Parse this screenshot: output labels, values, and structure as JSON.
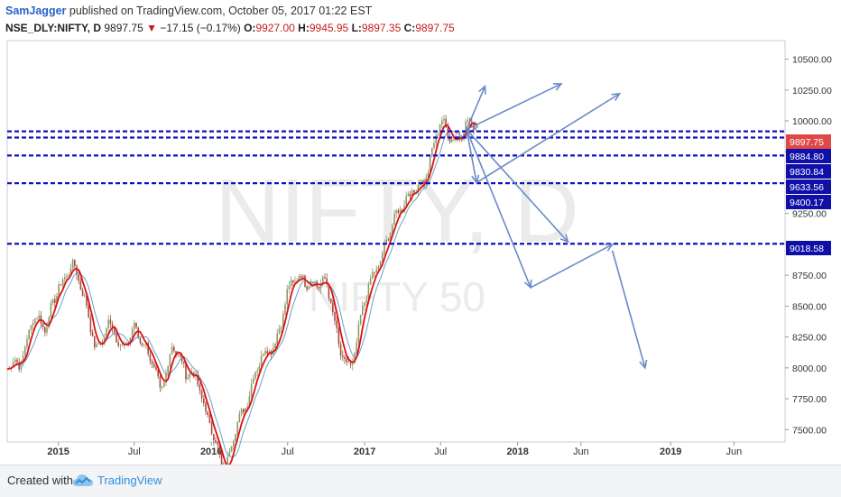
{
  "header": {
    "user": "SamJagger",
    "published_text": "published on TradingView.com, October 05, 2017 01:22 EST",
    "symbol": "NSE_DLY:NIFTY, D",
    "last": "9897.75",
    "change_arrow": "▼",
    "change": "−17.15 (−0.17%)",
    "o_label": "O:",
    "o_value": "9927.00",
    "h_label": "H:",
    "h_value": "9945.95",
    "l_label": "L:",
    "l_value": "9897.35",
    "c_label": "C:",
    "c_value": "9897.75"
  },
  "watermark": {
    "big": "NIFTY, D",
    "small": "NIFTY 50"
  },
  "footer": {
    "created_with": "Created with",
    "brand": "TradingView",
    "logo_icon": "tradingview-cloud-icon"
  },
  "colors": {
    "candle_up": "#8a9a6a",
    "candle_down": "#a05040",
    "ma_fast": "#e01010",
    "ma_slow": "#6aa0c8",
    "level_line": "#1010c0",
    "arrow": "#6a8ac8",
    "last_price_tag": "#e04848",
    "level_tag": "#1010a8"
  },
  "chart_data": {
    "type": "candlestick",
    "x_axis": {
      "start": "2014-09",
      "end": "2019-10",
      "ticks": [
        {
          "label": "2015",
          "date": "2015-01",
          "bold": true
        },
        {
          "label": "Jul",
          "date": "2015-07"
        },
        {
          "label": "2016",
          "date": "2016-01",
          "bold": true
        },
        {
          "label": "Jul",
          "date": "2016-07"
        },
        {
          "label": "2017",
          "date": "2017-01",
          "bold": true
        },
        {
          "label": "Jul",
          "date": "2017-07"
        },
        {
          "label": "2018",
          "date": "2018-01",
          "bold": true
        },
        {
          "label": "Jun",
          "date": "2018-06"
        },
        {
          "label": "2019",
          "date": "2019-01",
          "bold": true
        },
        {
          "label": "Jun",
          "date": "2019-06"
        }
      ]
    },
    "y_axis": {
      "range": [
        7400,
        10650
      ],
      "ticks": [
        "10500.00",
        "10250.00",
        "10000.00",
        "9750.00",
        "9500.00",
        "9250.00",
        "9000.00",
        "8750.00",
        "8500.00",
        "8250.00",
        "8000.00",
        "7750.00",
        "7500.00"
      ]
    },
    "price_path": [
      [
        "2014-09",
        7950
      ],
      [
        "2014-10",
        8050
      ],
      [
        "2014-11",
        8450
      ],
      [
        "2014-12",
        8250
      ],
      [
        "2015-01",
        8700
      ],
      [
        "2015-02",
        8850
      ],
      [
        "2015-03",
        8550
      ],
      [
        "2015-04",
        8200
      ],
      [
        "2015-05",
        8350
      ],
      [
        "2015-06",
        8100
      ],
      [
        "2015-07",
        8400
      ],
      [
        "2015-08",
        8100
      ],
      [
        "2015-09",
        7800
      ],
      [
        "2015-10",
        8250
      ],
      [
        "2015-11",
        7900
      ],
      [
        "2015-12",
        7900
      ],
      [
        "2016-01",
        7550
      ],
      [
        "2016-02",
        7050
      ],
      [
        "2016-03",
        7600
      ],
      [
        "2016-04",
        7800
      ],
      [
        "2016-05",
        8050
      ],
      [
        "2016-06",
        8250
      ],
      [
        "2016-07",
        8600
      ],
      [
        "2016-08",
        8700
      ],
      [
        "2016-09",
        8750
      ],
      [
        "2016-10",
        8650
      ],
      [
        "2016-11",
        8150
      ],
      [
        "2016-12",
        8050
      ],
      [
        "2017-01",
        8500
      ],
      [
        "2017-02",
        8850
      ],
      [
        "2017-03",
        9150
      ],
      [
        "2017-04",
        9250
      ],
      [
        "2017-05",
        9500
      ],
      [
        "2017-06",
        9600
      ],
      [
        "2017-07",
        9950
      ],
      [
        "2017-08",
        9900
      ],
      [
        "2017-09",
        9950
      ],
      [
        "2017-10",
        9897.75
      ]
    ],
    "levels": [
      {
        "value": 9897.75,
        "label": "9897.75",
        "tag": "last"
      },
      {
        "value": 9884.8,
        "label": "9884.80"
      },
      {
        "value": 9830.84,
        "label": "9830.84"
      },
      {
        "value": 9633.56,
        "label": "9633.56"
      },
      {
        "value": 9400.17,
        "label": "9400.17"
      },
      {
        "value": 9018.58,
        "label": "9018.58"
      }
    ],
    "dashed_lines": [
      9915,
      9865,
      9720,
      9495,
      9005
    ],
    "arrows": [
      {
        "from": [
          "2017-09-01",
          9930
        ],
        "to": [
          "2017-10-15",
          10280
        ]
      },
      {
        "from": [
          "2017-09-01",
          9930
        ],
        "to": [
          "2018-04-15",
          10300
        ]
      },
      {
        "from": [
          "2017-09-01",
          9930
        ],
        "to": [
          "2017-09-25",
          9500
        ]
      },
      {
        "from": [
          "2017-09-25",
          9500
        ],
        "to": [
          "2018-09-01",
          10220
        ]
      },
      {
        "from": [
          "2017-09-01",
          9930
        ],
        "to": [
          "2018-05-01",
          9020
        ]
      },
      {
        "from": [
          "2017-09-01",
          9930
        ],
        "to": [
          "2018-02-01",
          8650
        ]
      },
      {
        "from": [
          "2018-02-01",
          8650
        ],
        "to": [
          "2018-08-15",
          9000
        ]
      },
      {
        "from": [
          "2018-08-15",
          8950
        ],
        "to": [
          "2018-11-01",
          8000
        ]
      }
    ]
  }
}
